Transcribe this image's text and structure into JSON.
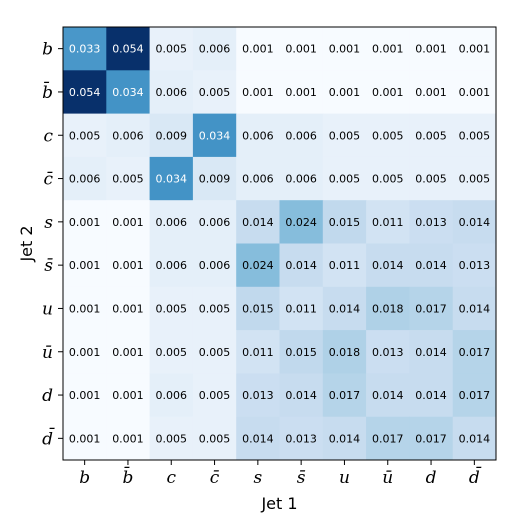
{
  "chart_data": {
    "type": "heatmap",
    "xlabel": "Jet 1",
    "ylabel": "Jet 2",
    "x_categories": [
      "b",
      "b̄",
      "c",
      "c̄",
      "s",
      "s̄",
      "u",
      "ū",
      "d",
      "d̄"
    ],
    "y_categories": [
      "b",
      "b̄",
      "c",
      "c̄",
      "s",
      "s̄",
      "u",
      "ū",
      "d",
      "d̄"
    ],
    "colormap": "Blues",
    "values": [
      [
        0.033,
        0.054,
        0.005,
        0.006,
        0.001,
        0.001,
        0.001,
        0.001,
        0.001,
        0.001
      ],
      [
        0.054,
        0.034,
        0.006,
        0.005,
        0.001,
        0.001,
        0.001,
        0.001,
        0.001,
        0.001
      ],
      [
        0.005,
        0.006,
        0.009,
        0.034,
        0.006,
        0.006,
        0.005,
        0.005,
        0.005,
        0.005
      ],
      [
        0.006,
        0.005,
        0.034,
        0.009,
        0.006,
        0.006,
        0.005,
        0.005,
        0.005,
        0.005
      ],
      [
        0.001,
        0.001,
        0.006,
        0.006,
        0.014,
        0.024,
        0.015,
        0.011,
        0.013,
        0.014
      ],
      [
        0.001,
        0.001,
        0.006,
        0.006,
        0.024,
        0.014,
        0.011,
        0.014,
        0.014,
        0.013
      ],
      [
        0.001,
        0.001,
        0.005,
        0.005,
        0.015,
        0.011,
        0.014,
        0.018,
        0.017,
        0.014
      ],
      [
        0.001,
        0.001,
        0.005,
        0.005,
        0.011,
        0.015,
        0.018,
        0.013,
        0.014,
        0.017
      ],
      [
        0.001,
        0.001,
        0.006,
        0.005,
        0.013,
        0.014,
        0.017,
        0.014,
        0.014,
        0.017
      ],
      [
        0.001,
        0.001,
        0.005,
        0.005,
        0.014,
        0.013,
        0.014,
        0.017,
        0.017,
        0.014
      ]
    ],
    "value_format": "0.000"
  }
}
